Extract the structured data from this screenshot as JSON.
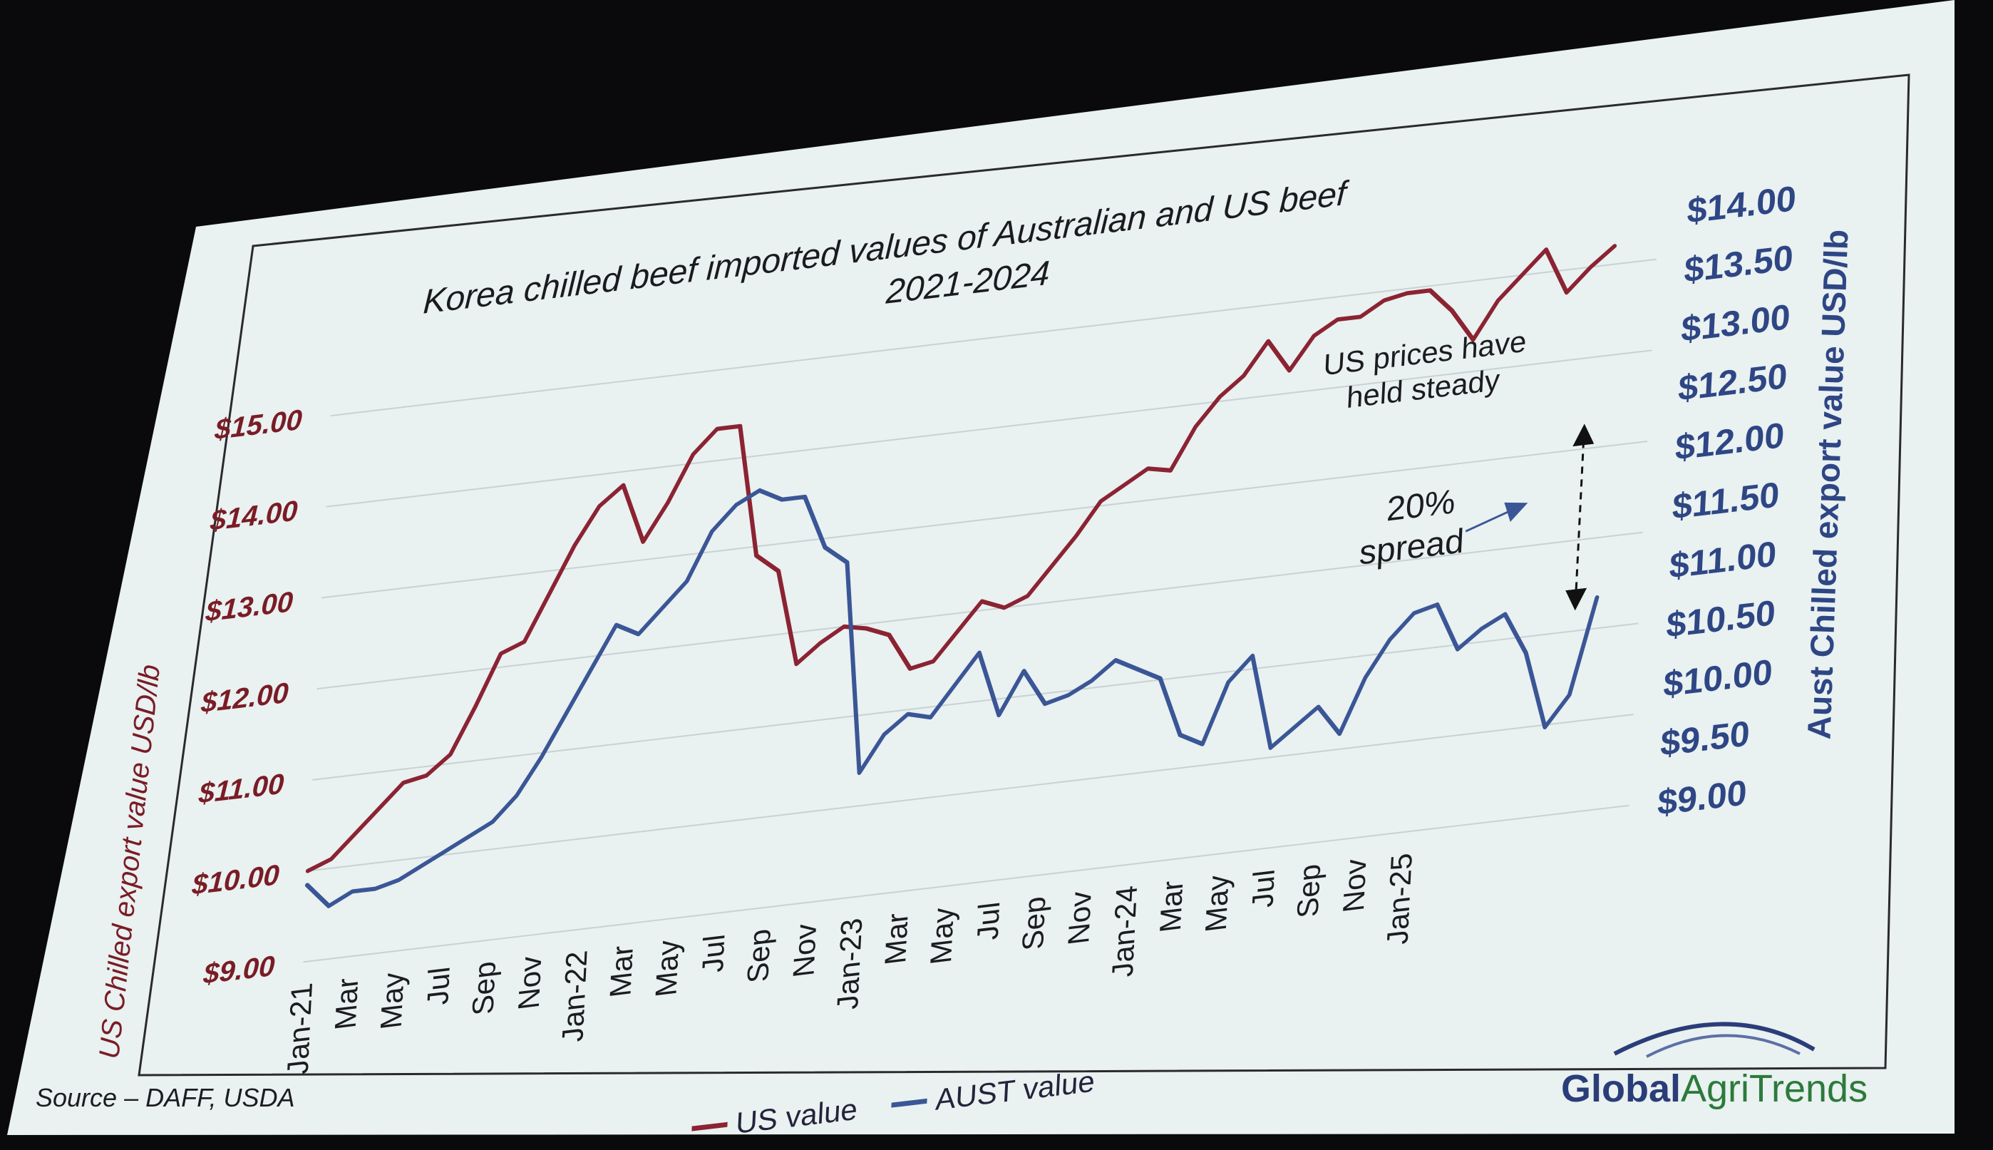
{
  "chart_data": {
    "type": "line",
    "title": "Korea chilled beef imported values of Australian and US beef",
    "subtitle": "2021-2024",
    "ylabel_left": "US Chilled export value USD/lb",
    "ylabel_right": "Aust Chilled export value USD/lb",
    "y_left_ticks": [
      "$9.00",
      "$10.00",
      "$11.00",
      "$12.00",
      "$13.00",
      "$14.00",
      "$15.00"
    ],
    "y_right_ticks": [
      "$9.00",
      "$9.50",
      "$10.00",
      "$10.50",
      "$11.00",
      "$11.50",
      "$12.00",
      "$12.50",
      "$13.00",
      "$13.50",
      "$14.00"
    ],
    "ylim_left": [
      9,
      15.5
    ],
    "ylim_right": [
      9,
      14
    ],
    "x_tick_labels": [
      "Jan-21",
      "Mar",
      "May",
      "Jul",
      "Sep",
      "Nov",
      "Jan-22",
      "Mar",
      "May",
      "Jul",
      "Sep",
      "Nov",
      "Jan-23",
      "Mar",
      "May",
      "Jul",
      "Sep",
      "Nov",
      "Jan-24",
      "Mar",
      "May",
      "Jul",
      "Sep",
      "Nov",
      "Jan-25"
    ],
    "grid": "horizontal",
    "legend_position": "bottom",
    "series": [
      {
        "name": "US value",
        "axis": "left",
        "color": "#8b2332",
        "values": [
          10.0,
          10.1,
          10.35,
          10.6,
          10.85,
          10.9,
          11.1,
          11.6,
          12.15,
          12.25,
          12.75,
          13.25,
          13.65,
          13.85,
          13.2,
          13.6,
          14.1,
          14.35,
          14.35,
          12.9,
          12.7,
          11.65,
          11.85,
          12.0,
          11.95,
          11.85,
          11.45,
          11.5,
          11.8,
          12.1,
          12.0,
          12.1,
          12.4,
          12.7,
          13.05,
          13.2,
          13.35,
          13.3,
          13.75,
          14.05,
          14.25,
          14.6,
          14.25,
          14.6,
          14.75,
          14.75,
          14.9,
          14.95,
          14.95,
          14.7,
          14.35,
          14.75,
          15.0,
          15.25,
          14.75,
          15.0,
          15.2
        ]
      },
      {
        "name": "AUST value",
        "axis": "right",
        "color": "#3a5696",
        "values": [
          9.65,
          9.45,
          9.55,
          9.55,
          9.6,
          9.7,
          9.8,
          9.9,
          10.0,
          10.2,
          10.5,
          10.85,
          11.2,
          11.55,
          11.45,
          11.65,
          11.85,
          12.25,
          12.45,
          12.55,
          12.45,
          12.45,
          12.0,
          11.85,
          10.05,
          10.35,
          10.5,
          10.45,
          10.7,
          10.95,
          10.4,
          10.75,
          10.45,
          10.5,
          10.6,
          10.75,
          10.65,
          10.55,
          10.05,
          9.95,
          10.45,
          10.65,
          9.85,
          10.0,
          10.15,
          9.9,
          10.35,
          10.65,
          10.85,
          10.9,
          10.5,
          10.65,
          10.75,
          10.4,
          9.75,
          10.0,
          10.8
        ]
      }
    ]
  },
  "annotations": {
    "held_steady_line1": "US prices have",
    "held_steady_line2": "held steady",
    "spread_line1": "20%",
    "spread_line2": "spread"
  },
  "footer": {
    "source": "Source – DAFF, USDA",
    "brand_part1": "Global",
    "brand_part2": "AgriTrends"
  },
  "colors": {
    "us_series": "#8b2332",
    "aust_series": "#3a5696",
    "right_axis": "#2e4684",
    "left_axis": "#7a1c25",
    "slide_background": "#e9f1f1"
  }
}
